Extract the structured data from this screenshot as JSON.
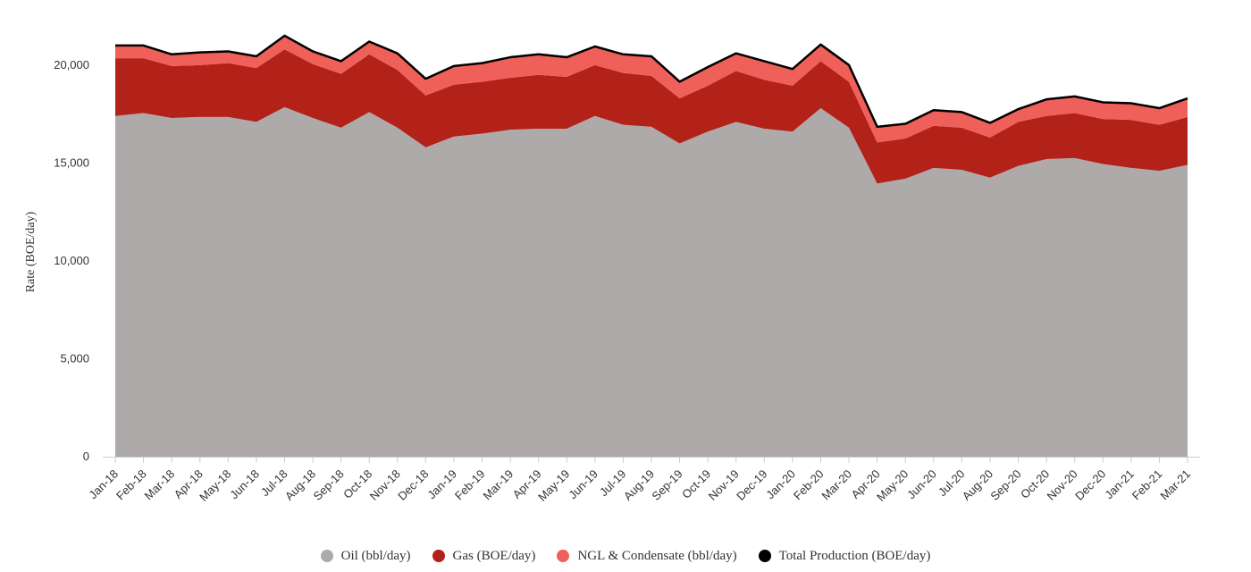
{
  "chart_data": {
    "type": "area",
    "stacked": true,
    "title": "",
    "xlabel": "",
    "ylabel": "Rate (BOE/day)",
    "ylim": [
      0,
      22000
    ],
    "yticks": [
      0,
      5000,
      10000,
      15000,
      20000
    ],
    "ytick_labels": [
      "0",
      "5,000",
      "10,000",
      "15,000",
      "20,000"
    ],
    "grid": false,
    "legend_position": "bottom-center",
    "categories": [
      "Jan-18",
      "Feb-18",
      "Mar-18",
      "Apr-18",
      "May-18",
      "Jun-18",
      "Jul-18",
      "Aug-18",
      "Sep-18",
      "Oct-18",
      "Nov-18",
      "Dec-18",
      "Jan-19",
      "Feb-19",
      "Mar-19",
      "Apr-19",
      "May-19",
      "Jun-19",
      "Jul-19",
      "Aug-19",
      "Sep-19",
      "Oct-19",
      "Nov-19",
      "Dec-19",
      "Jan-20",
      "Feb-20",
      "Mar-20",
      "Apr-20",
      "May-20",
      "Jun-20",
      "Jul-20",
      "Aug-20",
      "Sep-20",
      "Oct-20",
      "Nov-20",
      "Dec-20",
      "Jan-21",
      "Feb-21",
      "Mar-21"
    ],
    "series": [
      {
        "name": "Oil (bbl/day)",
        "color": "#aeaaaa",
        "kind": "area",
        "values": [
          17400,
          17550,
          17300,
          17350,
          17350,
          17100,
          17850,
          17300,
          16800,
          17600,
          16800,
          15800,
          16350,
          16500,
          16700,
          16750,
          16750,
          17400,
          16950,
          16850,
          16000,
          16600,
          17100,
          16750,
          16600,
          17800,
          16800,
          13950,
          14200,
          14750,
          14650,
          14250,
          14850,
          15200,
          15250,
          14950,
          14750,
          14600,
          14900
        ]
      },
      {
        "name": "Gas (BOE/day)",
        "color": "#b22218",
        "kind": "area",
        "values": [
          2950,
          2800,
          2650,
          2650,
          2750,
          2750,
          2950,
          2750,
          2750,
          2950,
          2950,
          2650,
          2650,
          2650,
          2650,
          2750,
          2650,
          2600,
          2650,
          2600,
          2300,
          2350,
          2600,
          2500,
          2350,
          2400,
          2350,
          2100,
          2050,
          2150,
          2150,
          2050,
          2250,
          2200,
          2300,
          2300,
          2450,
          2350,
          2450
        ]
      },
      {
        "name": "NGL & Condensate (bbl/day)",
        "color": "#f0605a",
        "kind": "area",
        "values": [
          650,
          650,
          600,
          650,
          600,
          600,
          700,
          650,
          650,
          650,
          850,
          850,
          950,
          950,
          1050,
          1050,
          1000,
          950,
          950,
          1000,
          850,
          950,
          900,
          950,
          850,
          850,
          850,
          800,
          750,
          800,
          800,
          750,
          650,
          850,
          850,
          850,
          850,
          850,
          950
        ]
      },
      {
        "name": "Total Production (BOE/day)",
        "color": "#000000",
        "kind": "line",
        "values": [
          21000,
          21000,
          20550,
          20650,
          20700,
          20450,
          21500,
          20700,
          20200,
          21200,
          20600,
          19300,
          19950,
          20100,
          20400,
          20550,
          20400,
          20950,
          20550,
          20450,
          19150,
          19900,
          20600,
          20200,
          19800,
          21050,
          20000,
          16850,
          17000,
          17700,
          17600,
          17050,
          17750,
          18250,
          18400,
          18100,
          18050,
          17800,
          18300
        ]
      }
    ]
  }
}
